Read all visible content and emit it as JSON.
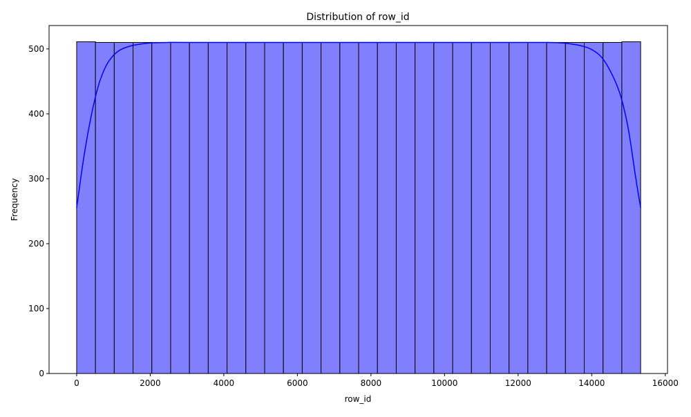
{
  "chart_data": {
    "type": "bar",
    "title": "Distribution of row_id",
    "xlabel": "row_id",
    "ylabel": "Frequency",
    "xlim": [
      -750,
      16060
    ],
    "ylim": [
      0,
      536
    ],
    "xticks": [
      0,
      2000,
      4000,
      6000,
      8000,
      10000,
      12000,
      14000,
      16000
    ],
    "yticks": [
      0,
      100,
      200,
      300,
      400,
      500
    ],
    "bin_edges": [
      0,
      511,
      1022,
      1533,
      2044,
      2555,
      3066,
      3577,
      4088,
      4599,
      5110,
      5621,
      6132,
      6643,
      7154,
      7665,
      8176,
      8687,
      9198,
      9709,
      10220,
      10731,
      11242,
      11753,
      12264,
      12775,
      13286,
      13797,
      14308,
      14819,
      15330
    ],
    "counts": [
      511,
      510,
      510,
      510,
      510,
      510,
      510,
      510,
      510,
      510,
      510,
      510,
      510,
      510,
      510,
      510,
      510,
      510,
      510,
      510,
      510,
      510,
      510,
      510,
      510,
      510,
      510,
      510,
      510,
      511
    ],
    "kde": {
      "x": [
        0,
        200,
        400,
        600,
        800,
        1000,
        1200,
        1500,
        1800,
        2100,
        2500,
        3000,
        7665,
        12300,
        12800,
        13100,
        13400,
        13700,
        14000,
        14300,
        14600,
        14800,
        15000,
        15200,
        15330
      ],
      "y": [
        255,
        335,
        398,
        445,
        474,
        490,
        499,
        505,
        508,
        509.5,
        510,
        510,
        510,
        510,
        510,
        509.5,
        508,
        505,
        499,
        485,
        455,
        425,
        375,
        300,
        255
      ]
    },
    "grid": false,
    "legend": false,
    "colors": {
      "bar_fill": "#8080ff",
      "bar_edge": "#000000",
      "kde_line": "#0000ff"
    }
  }
}
